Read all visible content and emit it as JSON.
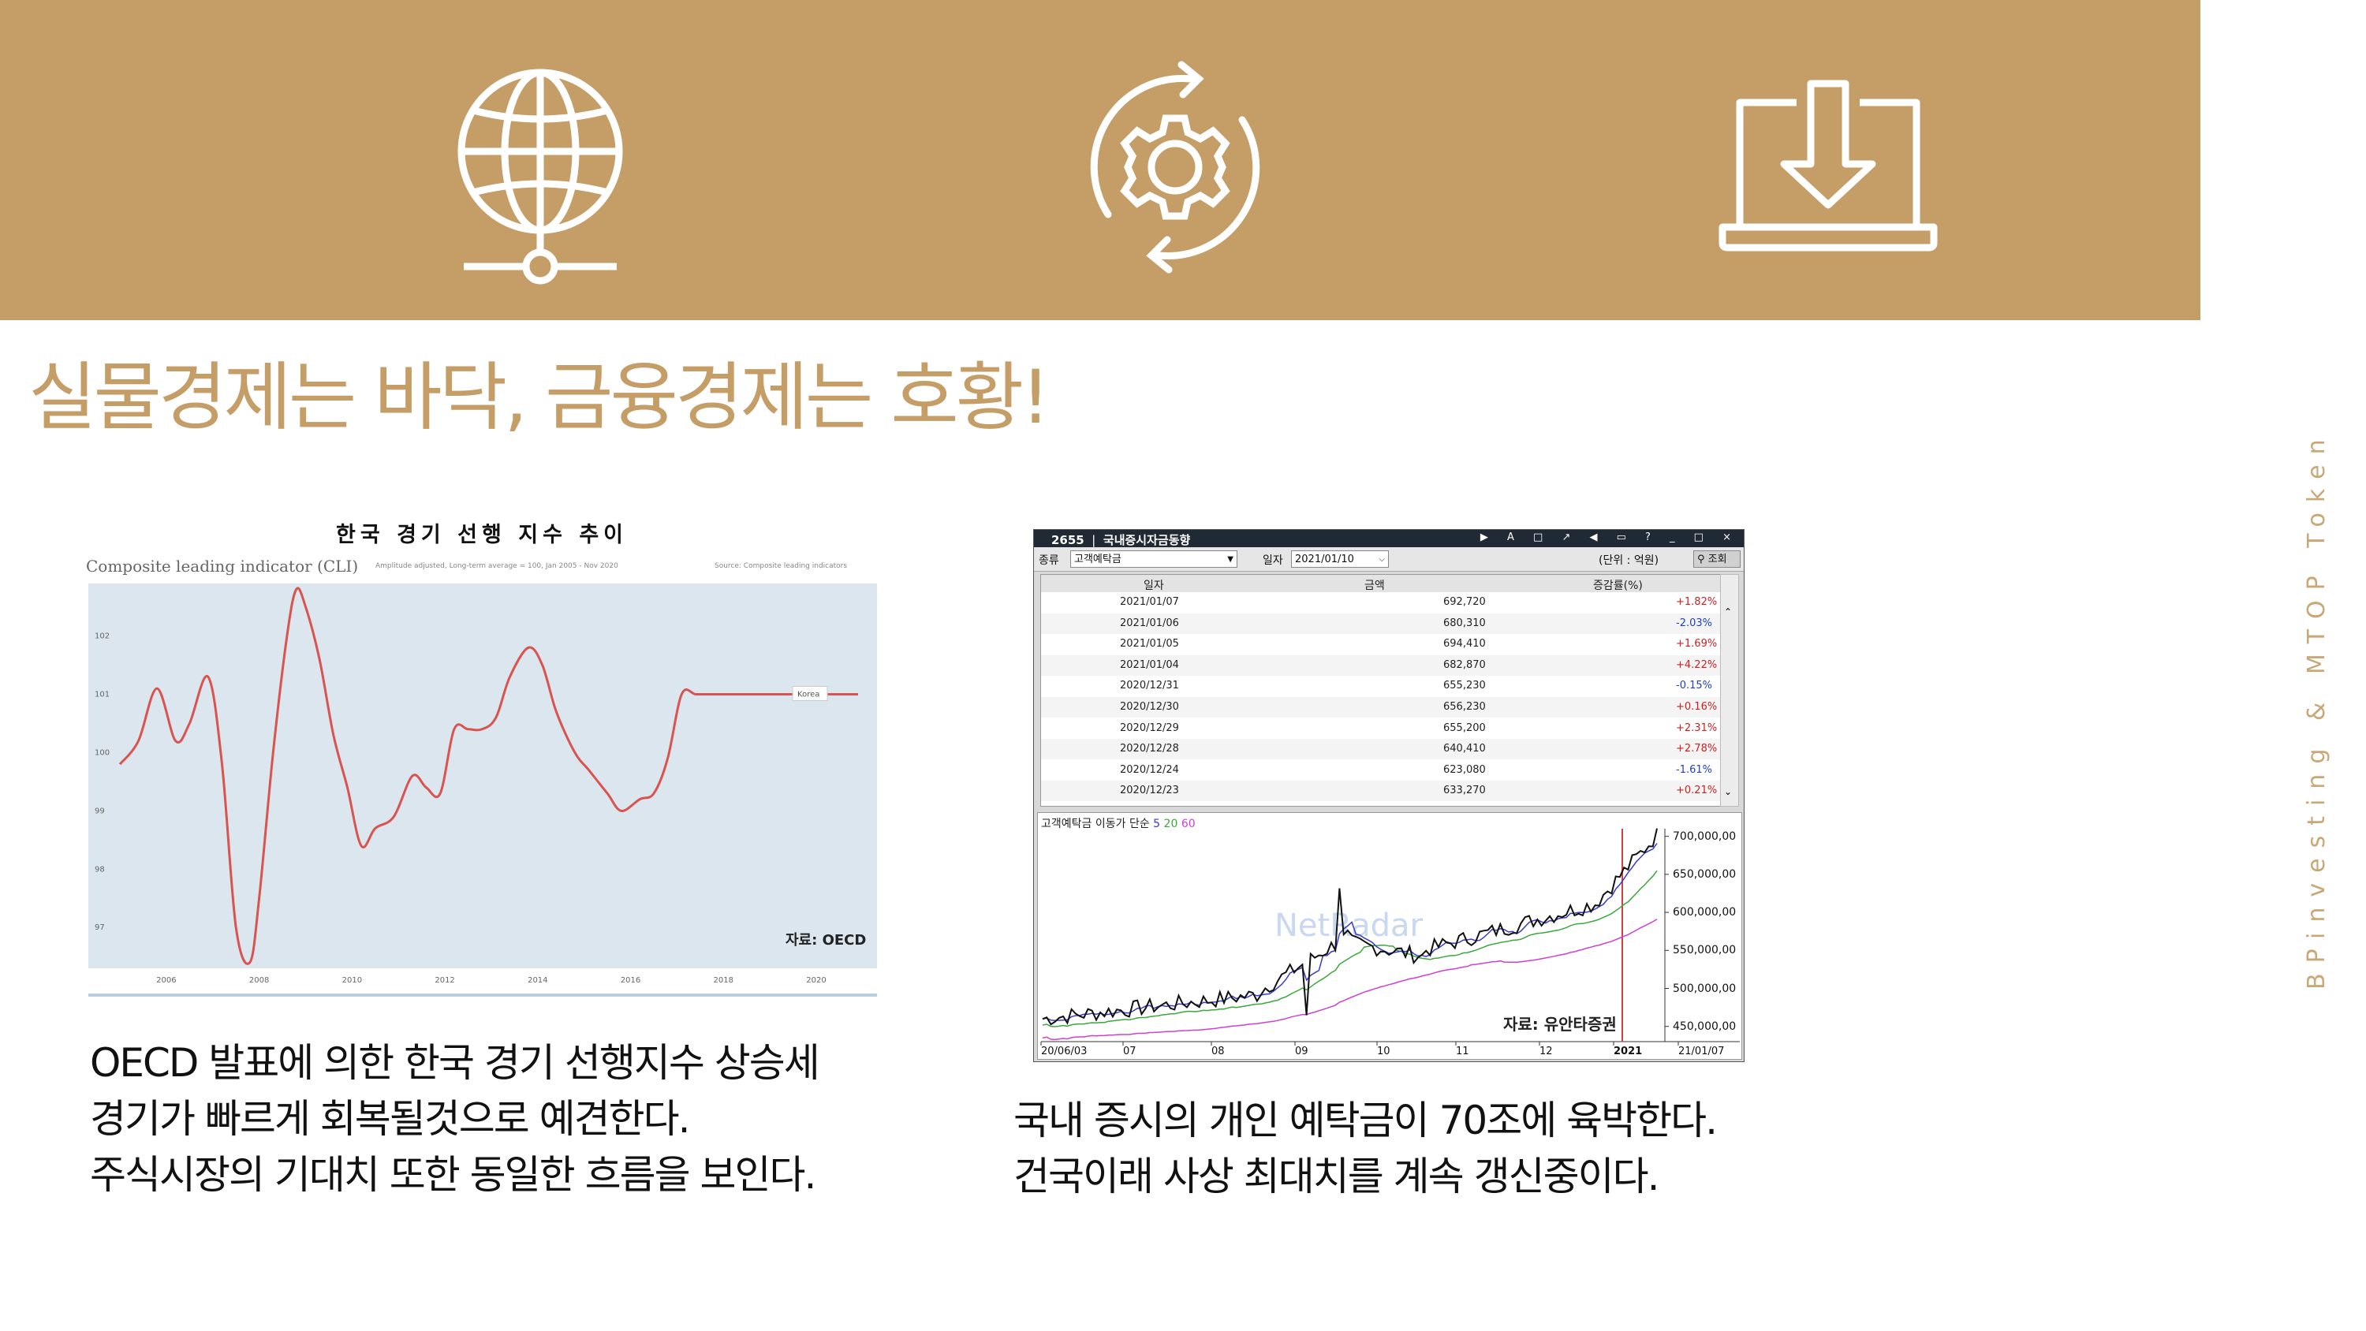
{
  "header": {
    "icons": [
      "globe-network-icon",
      "gear-refresh-icon",
      "laptop-download-icon"
    ]
  },
  "title": "실물경제는 바닥, 금융경제는 호황!",
  "side_text": "BPinvesting & MTOP Token",
  "colors": {
    "accent": "#c49d67",
    "text": "#111111"
  },
  "left_chart": {
    "heading": "한국 경기 선행 지수 추이",
    "subtitle": "Composite leading indicator (CLI)",
    "subtitle_note": "Amplitude adjusted, Long-term average = 100, Jan 2005 - Nov 2020",
    "source_note": "Source: Composite leading indicators",
    "legend_label": "Korea",
    "source_label": "자료: OECD",
    "caption": [
      "OECD 발표에 의한 한국 경기 선행지수 상승세",
      "경기가 빠르게 회복될것으로 예견한다.",
      "주식시장의 기대치 또한 동일한 흐름을 보인다."
    ]
  },
  "chart_data": [
    {
      "type": "line",
      "title": "한국 경기 선행 지수 추이",
      "subtitle": "Composite leading indicator (CLI)",
      "xlabel": "",
      "ylabel": "",
      "x_ticks": [
        "2006",
        "2008",
        "2010",
        "2012",
        "2014",
        "2016",
        "2018",
        "2020"
      ],
      "y_ticks": [
        "97",
        "98",
        "99",
        "100",
        "101",
        "102"
      ],
      "xlim": [
        2005.0,
        2020.9
      ],
      "ylim": [
        96.3,
        102.9
      ],
      "grid": false,
      "series": [
        {
          "name": "Korea",
          "color": "#d9534f",
          "x": [
            2005.0,
            2005.4,
            2005.8,
            2006.2,
            2006.5,
            2006.9,
            2007.2,
            2007.5,
            2007.8,
            2008.0,
            2008.3,
            2008.6,
            2008.8,
            2009.0,
            2009.3,
            2009.6,
            2009.9,
            2010.2,
            2010.5,
            2010.9,
            2011.3,
            2011.6,
            2011.9,
            2012.2,
            2012.5,
            2012.8,
            2013.1,
            2013.4,
            2013.8,
            2014.1,
            2014.4,
            2014.8,
            2015.1,
            2015.5,
            2015.8,
            2016.2,
            2016.5,
            2016.8,
            2017.1,
            2017.4,
            2017.7,
            2018.0,
            2018.3,
            2018.7,
            2019.0,
            2019.4,
            2019.7,
            2020.0,
            2020.3,
            2020.6,
            2020.9
          ],
          "y": [
            99.8,
            100.2,
            101.1,
            100.2,
            100.5,
            101.3,
            99.8,
            97.0,
            96.4,
            97.5,
            100.0,
            102.0,
            102.8,
            102.5,
            101.6,
            100.3,
            99.4,
            98.4,
            98.7,
            98.9,
            99.6,
            99.4,
            99.3,
            100.4,
            100.4,
            100.4,
            100.6,
            101.3,
            101.8,
            101.5,
            100.7,
            100.0,
            99.7,
            99.3,
            99.0,
            99.2,
            99.3,
            99.9,
            101.0,
            101.0,
            101.0,
            101.0,
            101.0,
            101.0,
            101.0,
            101.0,
            101.0,
            101.0,
            101.0,
            101.0,
            101.0
          ]
        }
      ]
    },
    {
      "type": "table",
      "title": "국내증시자금동향",
      "columns": [
        "일자",
        "금액",
        "증감률(%)"
      ],
      "rows": [
        [
          "2021/01/07",
          "692,720",
          "+1.82%"
        ],
        [
          "2021/01/06",
          "680,310",
          "-2.03%"
        ],
        [
          "2021/01/05",
          "694,410",
          "+1.69%"
        ],
        [
          "2021/01/04",
          "682,870",
          "+4.22%"
        ],
        [
          "2020/12/31",
          "655,230",
          "-0.15%"
        ],
        [
          "2020/12/30",
          "656,230",
          "+0.16%"
        ],
        [
          "2020/12/29",
          "655,200",
          "+2.31%"
        ],
        [
          "2020/12/28",
          "640,410",
          "+2.78%"
        ],
        [
          "2020/12/24",
          "623,080",
          "-1.61%"
        ],
        [
          "2020/12/23",
          "633,270",
          "+0.21%"
        ]
      ]
    },
    {
      "type": "line",
      "title": "",
      "xlabel": "",
      "ylabel": "",
      "x_ticks": [
        "20/06/03",
        "07",
        "08",
        "09",
        "10",
        "11",
        "12",
        "2021",
        "21/01/07"
      ],
      "y_ticks": [
        "700,000,00",
        "650,000,00",
        "600,000,00",
        "550,000,00",
        "500,000,00",
        "450,000,00"
      ],
      "ylim": [
        430000,
        710000
      ],
      "grid": false,
      "series": [
        {
          "name": "고객예탁금",
          "color": "#111111"
        },
        {
          "name": "5",
          "color": "#3a3ad0"
        },
        {
          "name": "20",
          "color": "#3aa83a"
        },
        {
          "name": "60",
          "color": "#d040d0"
        }
      ]
    }
  ],
  "right_screen": {
    "window_code": "2655",
    "window_title": "국내증시자금동향",
    "window_controls": "▶ A □ ↗ ◀ ▭ ? _ □ ×",
    "type_label": "종류",
    "type_value": "고객예탁금",
    "date_label": "일자",
    "date_value": "2021/01/10",
    "unit_label": "(단위 : 억원)",
    "query_button": "조회",
    "legend_main": "고객예탁금 이동가 단순",
    "legend_ma": [
      "5",
      "20",
      "60"
    ],
    "watermark": "NetRadar",
    "source_label": "자료: 유안타증권",
    "caption": [
      "국내 증시의 개인 예탁금이 70조에 육박한다.",
      "건국이래 사상 최대치를 계속 갱신중이다."
    ]
  }
}
